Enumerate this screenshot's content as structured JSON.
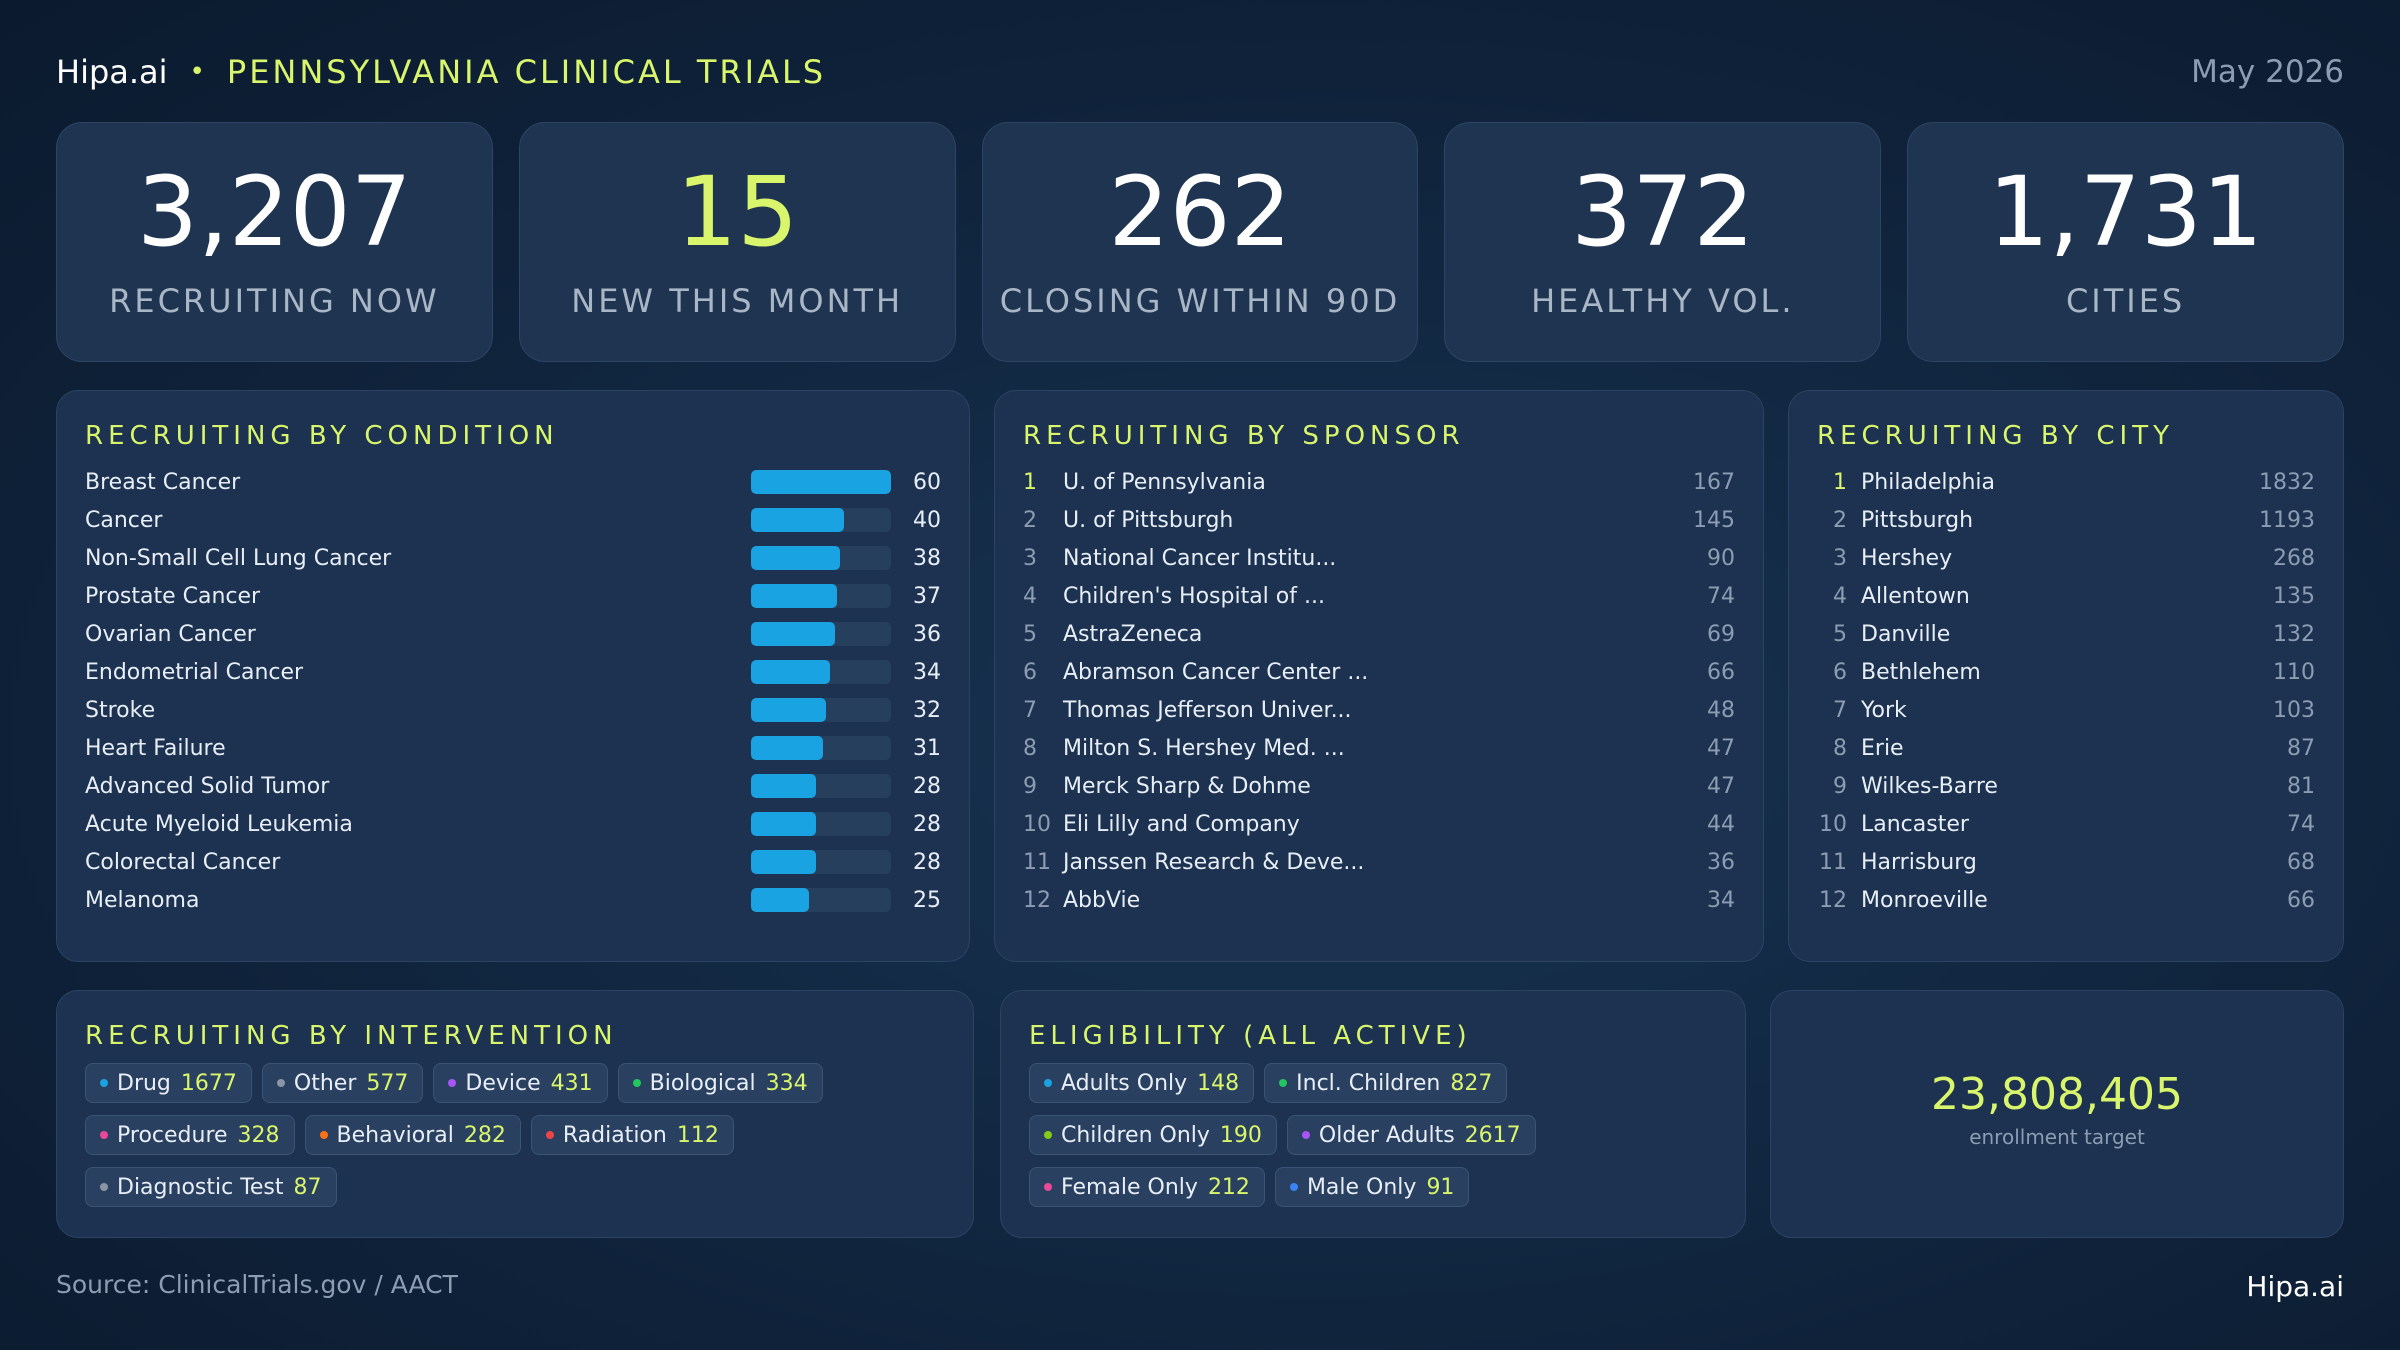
{
  "header": {
    "brand": "Hipa.ai",
    "separator": "•",
    "title": "PENNSYLVANIA CLINICAL TRIALS",
    "date": "May 2026"
  },
  "kpis": [
    {
      "value": "3,207",
      "label": "RECRUITING NOW"
    },
    {
      "value": "15",
      "label": "NEW THIS MONTH"
    },
    {
      "value": "262",
      "label": "CLOSING WITHIN 90D"
    },
    {
      "value": "372",
      "label": "HEALTHY VOL."
    },
    {
      "value": "1,731",
      "label": "CITIES"
    }
  ],
  "condition": {
    "title": "RECRUITING BY CONDITION",
    "max": 60,
    "items": [
      {
        "label": "Breast Cancer",
        "value": 60
      },
      {
        "label": "Cancer",
        "value": 40
      },
      {
        "label": "Non-Small Cell Lung Cancer",
        "value": 38
      },
      {
        "label": "Prostate Cancer",
        "value": 37
      },
      {
        "label": "Ovarian Cancer",
        "value": 36
      },
      {
        "label": "Endometrial Cancer",
        "value": 34
      },
      {
        "label": "Stroke",
        "value": 32
      },
      {
        "label": "Heart Failure",
        "value": 31
      },
      {
        "label": "Advanced Solid Tumor",
        "value": 28
      },
      {
        "label": "Acute Myeloid Leukemia",
        "value": 28
      },
      {
        "label": "Colorectal Cancer",
        "value": 28
      },
      {
        "label": "Melanoma",
        "value": 25
      }
    ]
  },
  "sponsor": {
    "title": "RECRUITING BY SPONSOR",
    "items": [
      {
        "rank": "1",
        "name": "U. of Pennsylvania",
        "count": "167"
      },
      {
        "rank": "2",
        "name": "U. of Pittsburgh",
        "count": "145"
      },
      {
        "rank": "3",
        "name": "National Cancer Institu...",
        "count": "90"
      },
      {
        "rank": "4",
        "name": "Children's Hospital of ...",
        "count": "74"
      },
      {
        "rank": "5",
        "name": "AstraZeneca",
        "count": "69"
      },
      {
        "rank": "6",
        "name": "Abramson Cancer Center ...",
        "count": "66"
      },
      {
        "rank": "7",
        "name": "Thomas Jefferson Univer...",
        "count": "48"
      },
      {
        "rank": "8",
        "name": "Milton S. Hershey Med. ...",
        "count": "47"
      },
      {
        "rank": "9",
        "name": "Merck Sharp & Dohme",
        "count": "47"
      },
      {
        "rank": "10",
        "name": "Eli Lilly and Company",
        "count": "44"
      },
      {
        "rank": "11",
        "name": "Janssen Research & Deve...",
        "count": "36"
      },
      {
        "rank": "12",
        "name": "AbbVie",
        "count": "34"
      }
    ]
  },
  "city": {
    "title": "RECRUITING BY CITY",
    "items": [
      {
        "rank": "1",
        "name": "Philadelphia",
        "count": "1832"
      },
      {
        "rank": "2",
        "name": "Pittsburgh",
        "count": "1193"
      },
      {
        "rank": "3",
        "name": "Hershey",
        "count": "268"
      },
      {
        "rank": "4",
        "name": "Allentown",
        "count": "135"
      },
      {
        "rank": "5",
        "name": "Danville",
        "count": "132"
      },
      {
        "rank": "6",
        "name": "Bethlehem",
        "count": "110"
      },
      {
        "rank": "7",
        "name": "York",
        "count": "103"
      },
      {
        "rank": "8",
        "name": "Erie",
        "count": "87"
      },
      {
        "rank": "9",
        "name": "Wilkes-Barre",
        "count": "81"
      },
      {
        "rank": "10",
        "name": "Lancaster",
        "count": "74"
      },
      {
        "rank": "11",
        "name": "Harrisburg",
        "count": "68"
      },
      {
        "rank": "12",
        "name": "Monroeville",
        "count": "66"
      }
    ]
  },
  "intervention": {
    "title": "RECRUITING BY INTERVENTION",
    "chips": [
      {
        "label": "Drug",
        "count": "1677",
        "color": "#1aa3e2"
      },
      {
        "label": "Other",
        "count": "577",
        "color": "#8a96a6"
      },
      {
        "label": "Device",
        "count": "431",
        "color": "#a855f7"
      },
      {
        "label": "Biological",
        "count": "334",
        "color": "#22c55e"
      },
      {
        "label": "Procedure",
        "count": "328",
        "color": "#ec4899"
      },
      {
        "label": "Behavioral",
        "count": "282",
        "color": "#f97316"
      },
      {
        "label": "Radiation",
        "count": "112",
        "color": "#ef4444"
      },
      {
        "label": "Diagnostic Test",
        "count": "87",
        "color": "#8a96a6"
      }
    ]
  },
  "eligibility": {
    "title": "ELIGIBILITY (ALL ACTIVE)",
    "chips": [
      {
        "label": "Adults Only",
        "count": "148",
        "color": "#1aa3e2"
      },
      {
        "label": "Incl. Children",
        "count": "827",
        "color": "#22c55e"
      },
      {
        "label": "Children Only",
        "count": "190",
        "color": "#84cc16"
      },
      {
        "label": "Older Adults",
        "count": "2617",
        "color": "#a855f7"
      },
      {
        "label": "Female Only",
        "count": "212",
        "color": "#ec4899"
      },
      {
        "label": "Male Only",
        "count": "91",
        "color": "#3b82f6"
      }
    ]
  },
  "enrollment": {
    "value": "23,808,405",
    "label": "enrollment target"
  },
  "footer": {
    "source": "Source: ClinicalTrials.gov / AACT",
    "brand": "Hipa.ai"
  }
}
